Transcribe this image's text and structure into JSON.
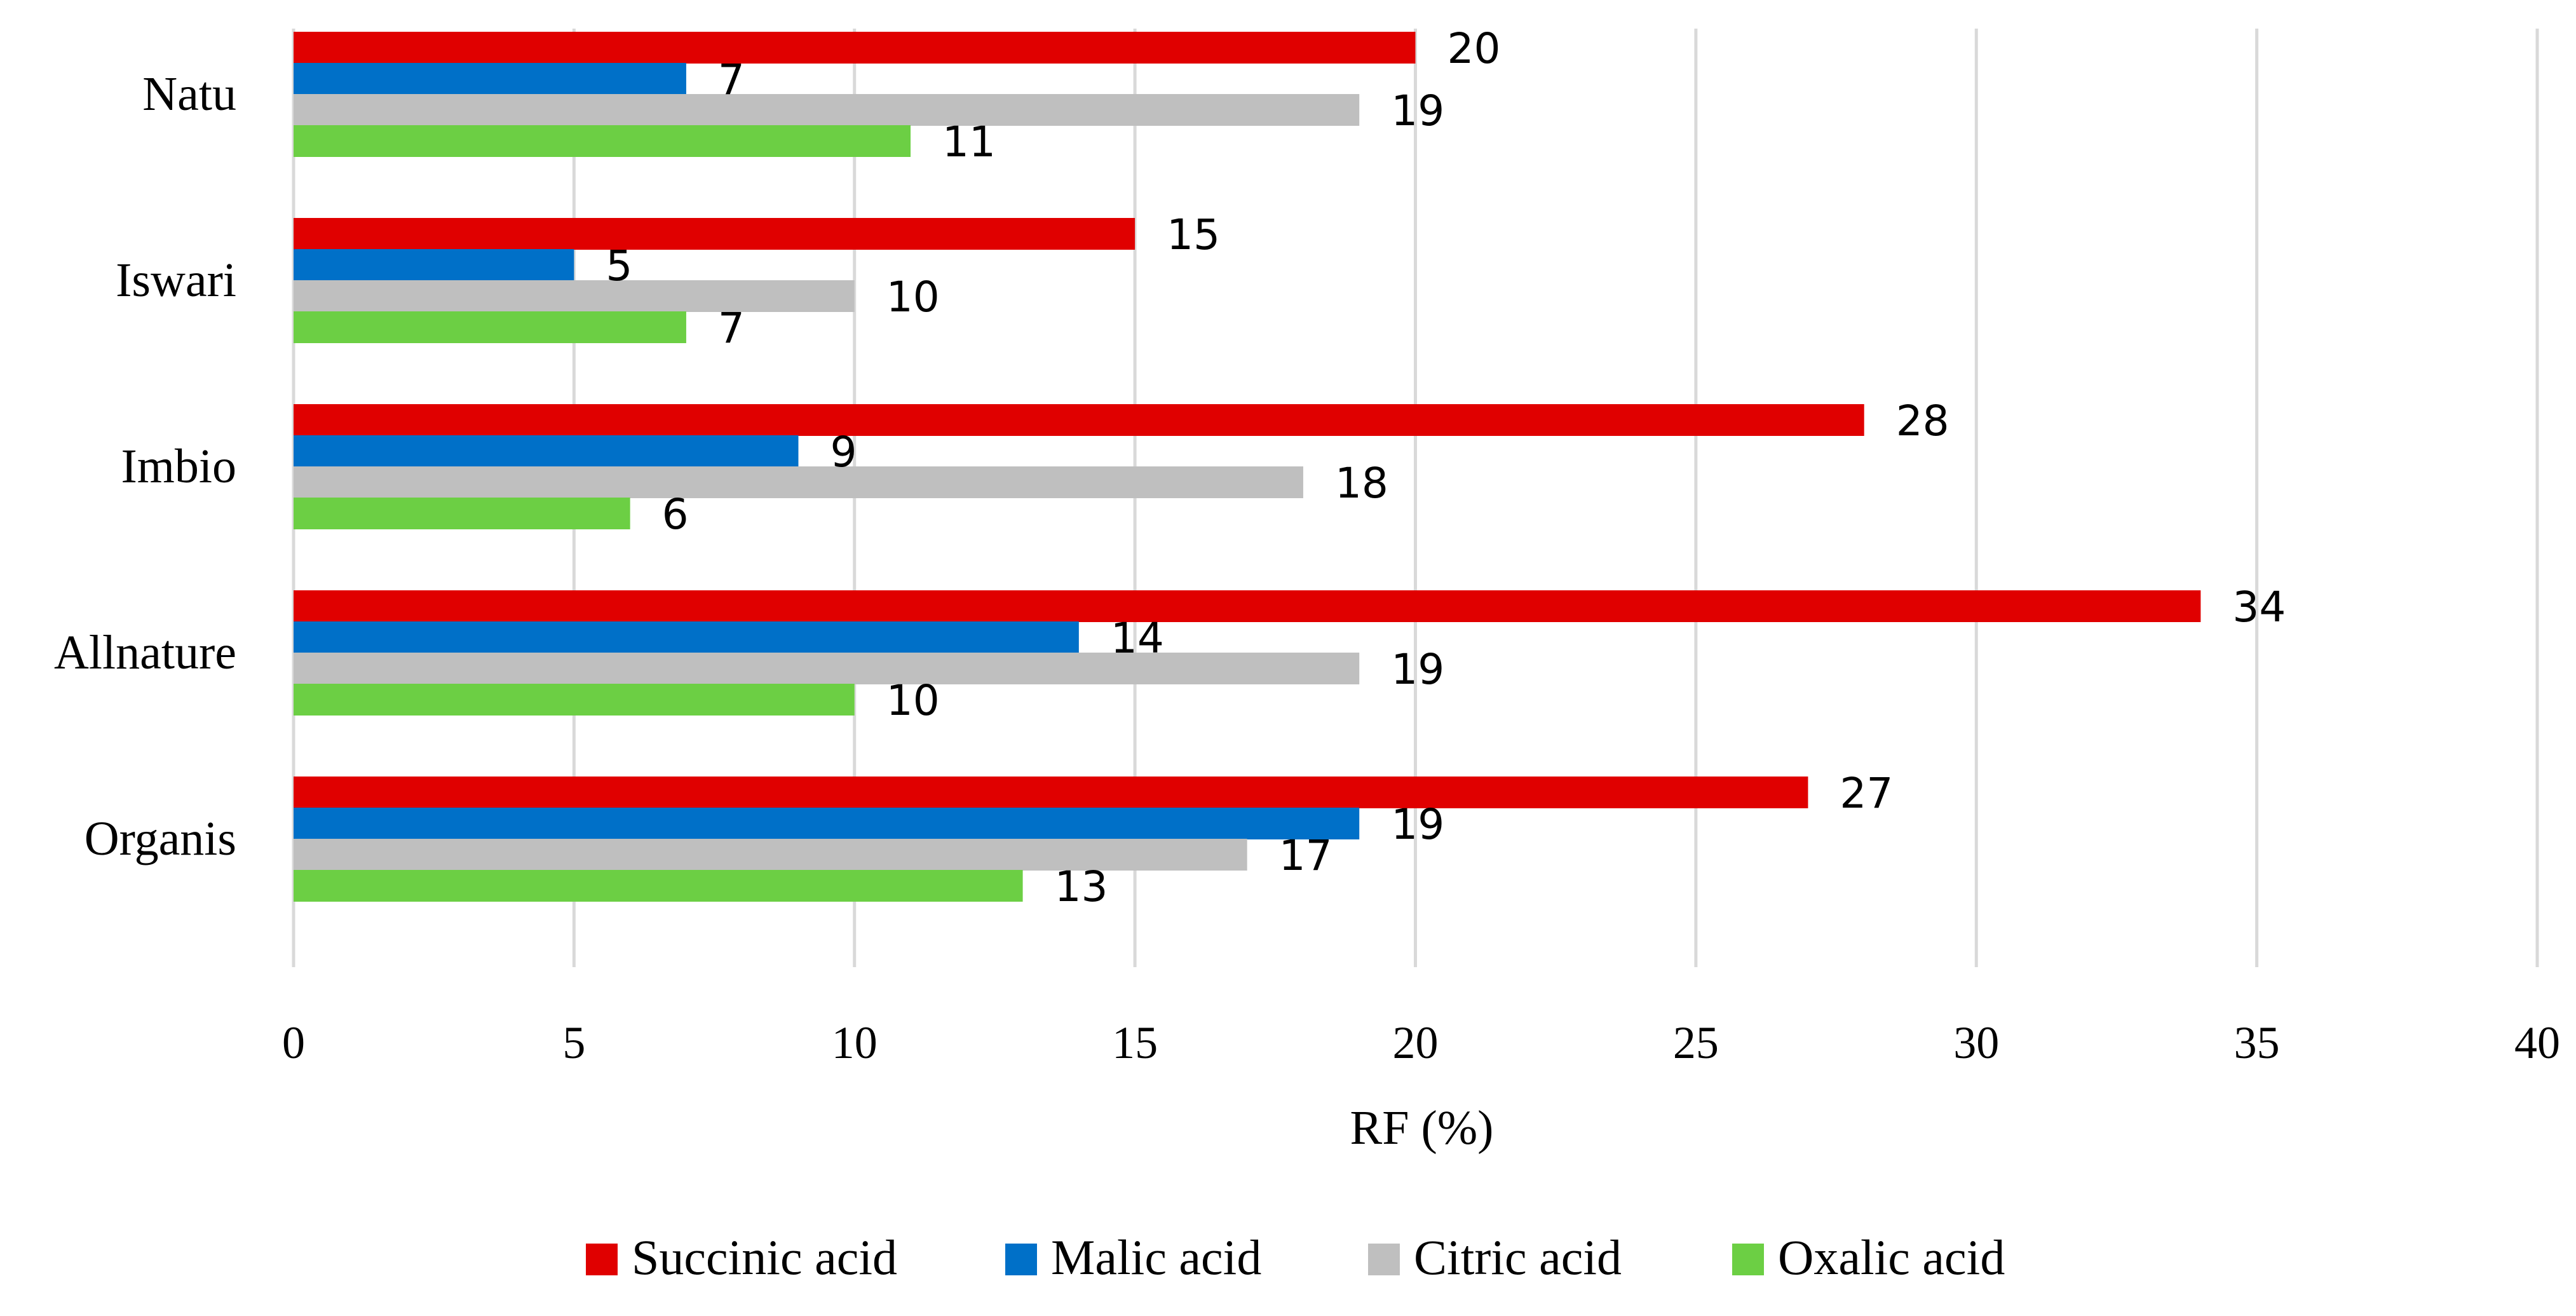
{
  "chart_data": {
    "type": "bar",
    "orientation": "horizontal",
    "categories": [
      "Natu",
      "Iswari",
      "Imbio",
      "Allnature",
      "Organis"
    ],
    "series": [
      {
        "name": "Succinic acid",
        "color": "#e00000",
        "values": [
          20,
          15,
          28,
          34,
          27
        ]
      },
      {
        "name": "Malic acid",
        "color": "#0070c8",
        "values": [
          7,
          5,
          9,
          14,
          19
        ]
      },
      {
        "name": "Citric acid",
        "color": "#bfbfbf",
        "values": [
          19,
          10,
          18,
          19,
          17
        ]
      },
      {
        "name": "Oxalic acid",
        "color": "#6ccf44",
        "values": [
          11,
          7,
          6,
          10,
          13
        ]
      }
    ],
    "xlabel": "RF (%)",
    "xlim": [
      0,
      40
    ],
    "xticks": [
      0,
      5,
      10,
      15,
      20,
      25,
      30,
      35,
      40
    ],
    "title": "",
    "grid": true,
    "legend_position": "bottom"
  }
}
